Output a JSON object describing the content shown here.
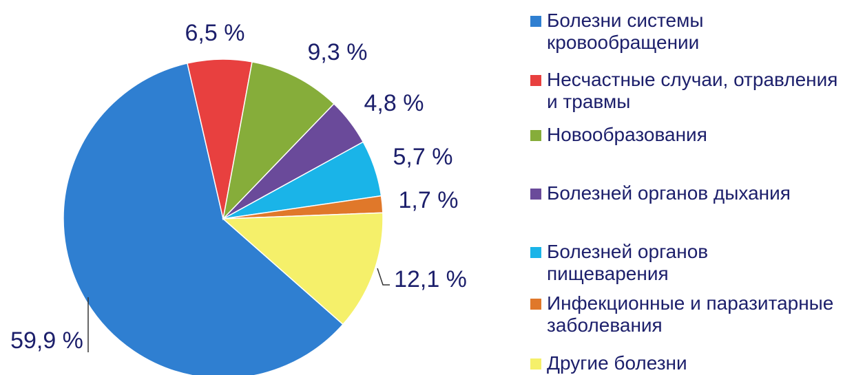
{
  "chart_data": {
    "type": "pie",
    "categories": [
      "Болезни системы кровообращении",
      "Несчастные случаи, отравления и травмы",
      "Новообразования",
      "Болезней органов дыхания",
      "Болезней органов пищеварения",
      "Инфекционные и паразитарные заболевания",
      "Другие болезни"
    ],
    "values": [
      59.9,
      6.5,
      9.3,
      4.8,
      5.7,
      1.7,
      12.1
    ],
    "value_labels": [
      "59,9 %",
      "6,5 %",
      "9,3 %",
      "4,8 %",
      "5,7 %",
      "1,7 %",
      "12,1 %"
    ],
    "colors": [
      "#2f7fd1",
      "#e8403f",
      "#86ad3a",
      "#6a4a9a",
      "#1ab4e8",
      "#e0782a",
      "#f5f06a"
    ],
    "legend": "right"
  }
}
